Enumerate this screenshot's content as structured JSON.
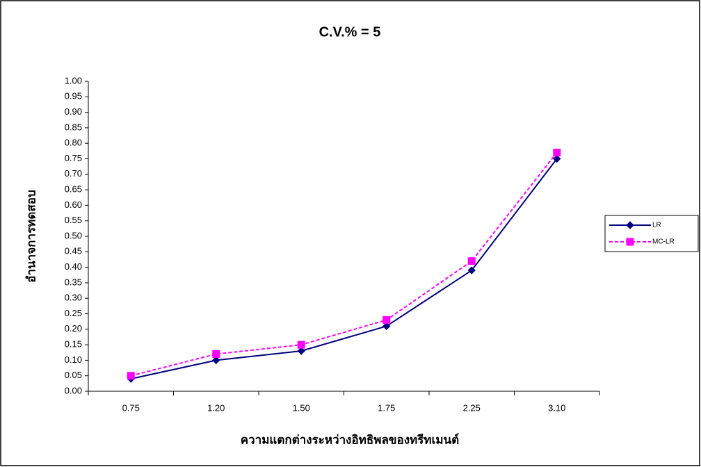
{
  "chart_data": {
    "type": "line",
    "title": "C.V.% = 5",
    "x_label": "ความแตกต่างระหว่างอิทธิพลของทรีทเมนต์",
    "y_label": "อำนาจการทดสอบ",
    "categories": [
      "0.75",
      "1.20",
      "1.50",
      "1.75",
      "2.25",
      "3.10"
    ],
    "series": [
      {
        "name": "LR",
        "color": "#000080",
        "marker": "diamond",
        "dash": false,
        "values": [
          0.04,
          0.1,
          0.13,
          0.21,
          0.39,
          0.75
        ]
      },
      {
        "name": "MC-LR",
        "color": "#ff00ff",
        "marker": "square",
        "dash": true,
        "values": [
          0.05,
          0.12,
          0.15,
          0.23,
          0.42,
          0.77
        ]
      }
    ],
    "ylim": [
      0,
      1
    ],
    "yticks": [
      {
        "value": 0,
        "label": "0.00"
      },
      {
        "value": 0.05,
        "label": "0.05"
      },
      {
        "value": 0.1,
        "label": "0.10"
      },
      {
        "value": 0.15,
        "label": "0.15"
      },
      {
        "value": 0.2,
        "label": "0.20"
      },
      {
        "value": 0.25,
        "label": "0.25"
      },
      {
        "value": 0.3,
        "label": "0.30"
      },
      {
        "value": 0.35,
        "label": "0.35"
      },
      {
        "value": 0.4,
        "label": "0.40"
      },
      {
        "value": 0.45,
        "label": "0.45"
      },
      {
        "value": 0.5,
        "label": "0.50"
      },
      {
        "value": 0.55,
        "label": "0.55"
      },
      {
        "value": 0.6,
        "label": "0.60"
      },
      {
        "value": 0.65,
        "label": "0.65"
      },
      {
        "value": 0.7,
        "label": "0.70"
      },
      {
        "value": 0.75,
        "label": "0.75"
      },
      {
        "value": 0.8,
        "label": "0.80"
      },
      {
        "value": 0.85,
        "label": "0.85"
      },
      {
        "value": 0.9,
        "label": "0.90"
      },
      {
        "value": 0.95,
        "label": "0.95"
      },
      {
        "value": 1,
        "label": "1.00"
      }
    ],
    "grid": false,
    "legend": "right"
  }
}
